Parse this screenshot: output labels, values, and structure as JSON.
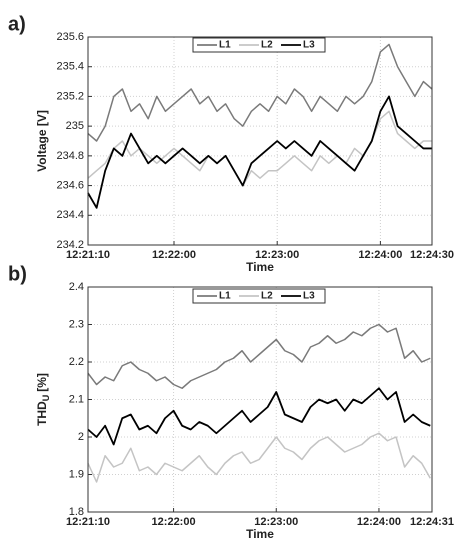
{
  "chart_data": [
    {
      "type": "line",
      "panel_label": "a)",
      "x_label": "Time",
      "y_label": "Voltage [V]",
      "x": [
        "12:21:10",
        "12:21:15",
        "12:21:20",
        "12:21:25",
        "12:21:30",
        "12:21:35",
        "12:21:40",
        "12:21:45",
        "12:21:50",
        "12:21:55",
        "12:22:00",
        "12:22:05",
        "12:22:10",
        "12:22:15",
        "12:22:20",
        "12:22:25",
        "12:22:30",
        "12:22:35",
        "12:22:40",
        "12:22:45",
        "12:22:50",
        "12:22:55",
        "12:23:00",
        "12:23:05",
        "12:23:10",
        "12:23:15",
        "12:23:20",
        "12:23:25",
        "12:23:30",
        "12:23:35",
        "12:23:40",
        "12:23:45",
        "12:23:50",
        "12:23:55",
        "12:24:00",
        "12:24:05",
        "12:24:10",
        "12:24:15",
        "12:24:20",
        "12:24:25",
        "12:24:30"
      ],
      "series": [
        {
          "name": "L1",
          "color": "#7a7a7a",
          "values": [
            234.95,
            234.9,
            235.0,
            235.2,
            235.25,
            235.1,
            235.15,
            235.05,
            235.2,
            235.1,
            235.15,
            235.2,
            235.25,
            235.15,
            235.2,
            235.1,
            235.15,
            235.05,
            235.0,
            235.1,
            235.15,
            235.1,
            235.2,
            235.15,
            235.25,
            235.2,
            235.1,
            235.2,
            235.15,
            235.1,
            235.2,
            235.15,
            235.2,
            235.3,
            235.5,
            235.55,
            235.4,
            235.3,
            235.2,
            235.3,
            235.25
          ]
        },
        {
          "name": "L2",
          "color": "#c4c4c4",
          "values": [
            234.65,
            234.7,
            234.75,
            234.85,
            234.9,
            234.8,
            234.85,
            234.8,
            234.75,
            234.8,
            234.85,
            234.8,
            234.75,
            234.7,
            234.8,
            234.75,
            234.8,
            234.7,
            234.6,
            234.7,
            234.65,
            234.7,
            234.7,
            234.75,
            234.8,
            234.75,
            234.7,
            234.8,
            234.75,
            234.8,
            234.75,
            234.85,
            234.8,
            234.9,
            235.05,
            235.1,
            234.95,
            234.9,
            234.85,
            234.9,
            234.9
          ]
        },
        {
          "name": "L3",
          "color": "#000000",
          "values": [
            234.55,
            234.45,
            234.7,
            234.85,
            234.8,
            234.95,
            234.85,
            234.75,
            234.8,
            234.75,
            234.8,
            234.85,
            234.8,
            234.75,
            234.8,
            234.75,
            234.8,
            234.7,
            234.6,
            234.75,
            234.8,
            234.85,
            234.9,
            234.85,
            234.9,
            234.85,
            234.8,
            234.9,
            234.85,
            234.8,
            234.75,
            234.7,
            234.8,
            234.9,
            235.1,
            235.2,
            235.0,
            234.95,
            234.9,
            234.85,
            234.85
          ]
        }
      ],
      "xlim": [
        "12:21:10",
        "12:24:30"
      ],
      "xticks": [
        "12:21:10",
        "12:22:00",
        "12:23:00",
        "12:24:00",
        "12:24:30"
      ],
      "ylim": [
        234.2,
        235.6
      ],
      "yticks": [
        234.2,
        234.4,
        234.6,
        234.8,
        235,
        235.2,
        235.4,
        235.6
      ],
      "grid": true,
      "legend": "top"
    },
    {
      "type": "line",
      "panel_label": "b)",
      "x_label": "Time",
      "y_label": "THD",
      "y_label_sub": "U",
      "y_label_unit": "[%]",
      "x": [
        "12:21:10",
        "12:21:15",
        "12:21:20",
        "12:21:25",
        "12:21:30",
        "12:21:35",
        "12:21:40",
        "12:21:45",
        "12:21:50",
        "12:21:55",
        "12:22:00",
        "12:22:05",
        "12:22:10",
        "12:22:15",
        "12:22:20",
        "12:22:25",
        "12:22:30",
        "12:22:35",
        "12:22:40",
        "12:22:45",
        "12:22:50",
        "12:22:55",
        "12:23:00",
        "12:23:05",
        "12:23:10",
        "12:23:15",
        "12:23:20",
        "12:23:25",
        "12:23:30",
        "12:23:35",
        "12:23:40",
        "12:23:45",
        "12:23:50",
        "12:23:55",
        "12:24:00",
        "12:24:05",
        "12:24:10",
        "12:24:15",
        "12:24:20",
        "12:24:25",
        "12:24:30"
      ],
      "series": [
        {
          "name": "L1",
          "color": "#7a7a7a",
          "values": [
            2.17,
            2.14,
            2.16,
            2.15,
            2.19,
            2.2,
            2.18,
            2.17,
            2.15,
            2.16,
            2.14,
            2.13,
            2.15,
            2.16,
            2.17,
            2.18,
            2.2,
            2.21,
            2.23,
            2.2,
            2.22,
            2.24,
            2.26,
            2.23,
            2.22,
            2.2,
            2.24,
            2.25,
            2.27,
            2.25,
            2.26,
            2.28,
            2.27,
            2.29,
            2.3,
            2.28,
            2.29,
            2.21,
            2.23,
            2.2,
            2.21
          ]
        },
        {
          "name": "L2",
          "color": "#c4c4c4",
          "values": [
            1.93,
            1.88,
            1.95,
            1.92,
            1.93,
            1.97,
            1.91,
            1.92,
            1.9,
            1.93,
            1.92,
            1.91,
            1.93,
            1.95,
            1.92,
            1.9,
            1.93,
            1.95,
            1.96,
            1.93,
            1.94,
            1.97,
            2.0,
            1.97,
            1.96,
            1.94,
            1.97,
            1.99,
            2.0,
            1.98,
            1.96,
            1.97,
            1.98,
            2.0,
            2.01,
            1.99,
            2.0,
            1.92,
            1.95,
            1.93,
            1.89
          ]
        },
        {
          "name": "L3",
          "color": "#000000",
          "values": [
            2.02,
            2.0,
            2.03,
            1.98,
            2.05,
            2.06,
            2.02,
            2.03,
            2.01,
            2.05,
            2.07,
            2.03,
            2.02,
            2.04,
            2.03,
            2.01,
            2.03,
            2.05,
            2.07,
            2.04,
            2.06,
            2.08,
            2.12,
            2.06,
            2.05,
            2.04,
            2.08,
            2.1,
            2.09,
            2.1,
            2.07,
            2.1,
            2.09,
            2.11,
            2.13,
            2.1,
            2.12,
            2.04,
            2.06,
            2.04,
            2.03
          ]
        }
      ],
      "xlim": [
        "12:21:10",
        "12:24:31"
      ],
      "xticks": [
        "12:21:10",
        "12:22:00",
        "12:23:00",
        "12:24:00",
        "12:24:31"
      ],
      "ylim": [
        1.8,
        2.4
      ],
      "yticks": [
        1.8,
        1.9,
        2,
        2.1,
        2.2,
        2.3,
        2.4
      ],
      "grid": true,
      "legend": "top"
    }
  ]
}
